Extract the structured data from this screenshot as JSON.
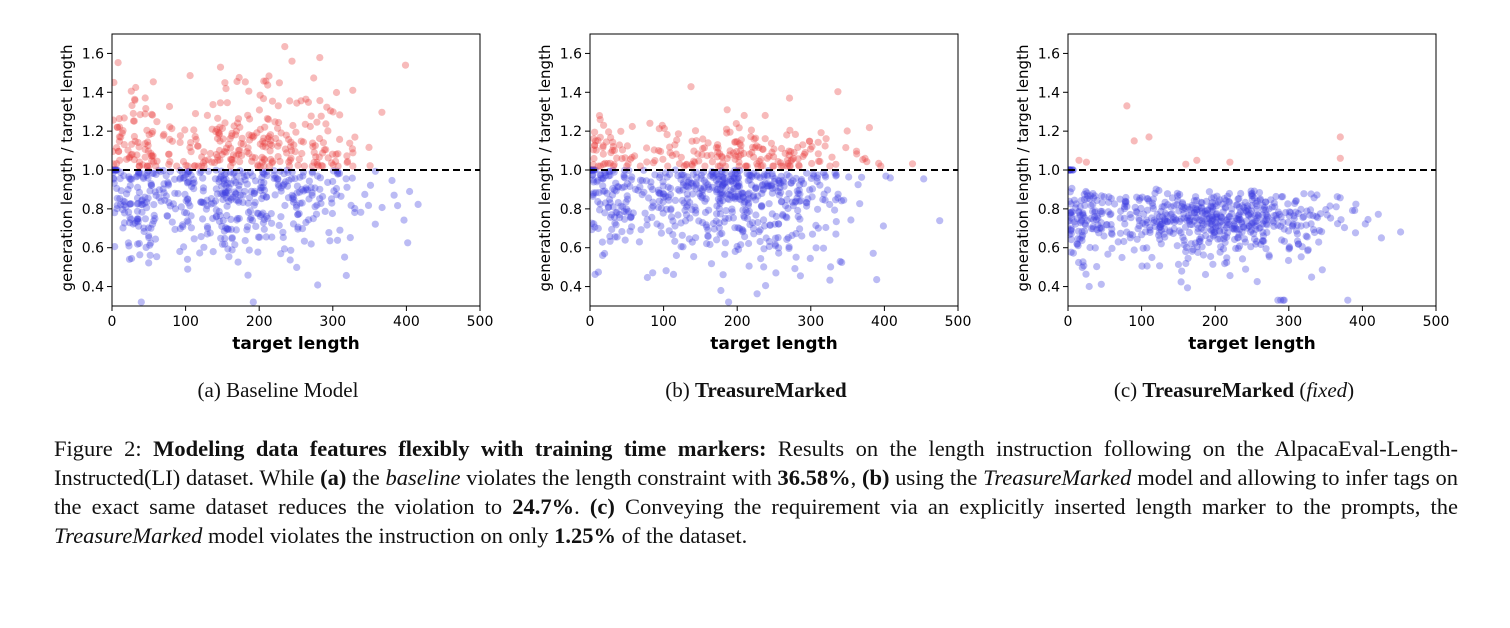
{
  "chart_data": [
    {
      "type": "scatter",
      "panel": "a",
      "xlabel": "target length",
      "ylabel": "generation length / target length",
      "xlim": [
        0,
        500
      ],
      "ylim": [
        0.3,
        1.7
      ],
      "xticks": [
        "0",
        "100",
        "200",
        "300",
        "400",
        "500"
      ],
      "yticks": [
        "0.4",
        "0.6",
        "0.8",
        "1.0",
        "1.2",
        "1.4",
        "1.6"
      ],
      "reference_line_y": 1.0,
      "colors": {
        "above": "#e8393a",
        "below": "#3d3de0"
      },
      "violation_rate": 0.3658,
      "above_center": {
        "x_mean": 190,
        "y_min": 1.02,
        "y_max": 1.68,
        "n": 320
      },
      "below_center": {
        "x_mean": 180,
        "y_min": 0.32,
        "y_max": 1.0,
        "n": 480
      }
    },
    {
      "type": "scatter",
      "panel": "b",
      "xlabel": "target length",
      "ylabel": "generation length / target length",
      "xlim": [
        0,
        500
      ],
      "ylim": [
        0.3,
        1.7
      ],
      "xticks": [
        "0",
        "100",
        "200",
        "300",
        "400",
        "500"
      ],
      "yticks": [
        "0.4",
        "0.6",
        "0.8",
        "1.0",
        "1.2",
        "1.4",
        "1.6"
      ],
      "reference_line_y": 1.0,
      "colors": {
        "above": "#e8393a",
        "below": "#3d3de0"
      },
      "violation_rate": 0.247,
      "above_center": {
        "x_mean": 220,
        "y_min": 1.02,
        "y_max": 1.45,
        "n": 220
      },
      "below_center": {
        "x_mean": 190,
        "y_min": 0.32,
        "y_max": 1.0,
        "n": 580
      }
    },
    {
      "type": "scatter",
      "panel": "c",
      "xlabel": "target length",
      "ylabel": "generation length / target length",
      "xlim": [
        0,
        500
      ],
      "ylim": [
        0.3,
        1.7
      ],
      "xticks": [
        "0",
        "100",
        "200",
        "300",
        "400",
        "500"
      ],
      "yticks": [
        "0.4",
        "0.6",
        "0.8",
        "1.0",
        "1.2",
        "1.4",
        "1.6"
      ],
      "reference_line_y": 1.0,
      "colors": {
        "above": "#e8393a",
        "below": "#3d3de0"
      },
      "violation_rate": 0.0125,
      "above_points": [
        [
          15,
          1.05
        ],
        [
          25,
          1.04
        ],
        [
          80,
          1.33
        ],
        [
          90,
          1.15
        ],
        [
          110,
          1.17
        ],
        [
          160,
          1.03
        ],
        [
          175,
          1.05
        ],
        [
          220,
          1.04
        ],
        [
          370,
          1.17
        ],
        [
          370,
          1.06
        ]
      ],
      "below_center": {
        "x_mean": 200,
        "y_min": 0.33,
        "y_max": 0.99,
        "n": 640
      }
    }
  ],
  "subcaptions": {
    "a": {
      "prefix": "(a) Baseline Model"
    },
    "b": {
      "prefix": "(b) ",
      "bold": "TreasureMarked"
    },
    "c": {
      "prefix": "(c) ",
      "bold": "TreasureMarked",
      "italic": "fixed"
    }
  },
  "caption": {
    "fig": "Figure 2: ",
    "bold_title": "Modeling data features flexibly with training time markers:",
    "t1": " Results on the length instruction following on the AlpacaEval-Length-Instructed(LI) dataset. While ",
    "a": "(a)",
    "t2": " the ",
    "baseline": "baseline",
    "t3": " violates the length constraint with ",
    "p1": "36.58%",
    "t4": ", ",
    "b": "(b)",
    "t5": " using the ",
    "tm1": "TreasureMarked",
    "t6": " model and allowing to infer tags on the exact same dataset reduces the violation to ",
    "p2": "24.7%",
    "t7": ". ",
    "c": "(c)",
    "t8": " Conveying the requirement via an explicitly inserted length marker to the prompts, the ",
    "tm2": "TreasureMarked",
    "t9": " model violates the instruction on only ",
    "p3": "1.25%",
    "t10": " of the dataset."
  }
}
